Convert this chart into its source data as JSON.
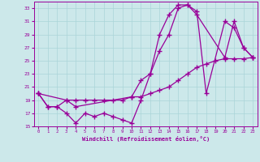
{
  "xlabel": "Windchill (Refroidissement éolien,°C)",
  "bg_color": "#cce8ea",
  "grid_color": "#aad4d8",
  "line_color": "#990099",
  "xlim": [
    -0.5,
    23.5
  ],
  "ylim": [
    15,
    34
  ],
  "xticks": [
    0,
    1,
    2,
    3,
    4,
    5,
    6,
    7,
    8,
    9,
    10,
    11,
    12,
    13,
    14,
    15,
    16,
    17,
    18,
    19,
    20,
    21,
    22,
    23
  ],
  "yticks": [
    15,
    17,
    19,
    21,
    23,
    25,
    27,
    29,
    31,
    33
  ],
  "series1_x": [
    0,
    1,
    2,
    3,
    4,
    5,
    6,
    7,
    8,
    9,
    10,
    11,
    12,
    13,
    14,
    15,
    16,
    17,
    18,
    20,
    21,
    22,
    23
  ],
  "series1_y": [
    20,
    18,
    18,
    17,
    15.5,
    17,
    16.5,
    17,
    16.5,
    16,
    15.5,
    19,
    23,
    29,
    32,
    33.5,
    33.5,
    32.5,
    20,
    31,
    30,
    27,
    25.5
  ],
  "series2_x": [
    0,
    1,
    2,
    3,
    4,
    5,
    6,
    7,
    8,
    9,
    10,
    11,
    12,
    13,
    14,
    15,
    16,
    17,
    18,
    19,
    20,
    21,
    22,
    23
  ],
  "series2_y": [
    20,
    18,
    18,
    19,
    19,
    19,
    19,
    19,
    19,
    19,
    19.5,
    19.5,
    20,
    20.5,
    21,
    22,
    23,
    24,
    24.5,
    25,
    25.3,
    25.3,
    25.3,
    25.5
  ],
  "series3_x": [
    0,
    3,
    4,
    10,
    11,
    12,
    13,
    14,
    15,
    16,
    17,
    20,
    21,
    22,
    23
  ],
  "series3_y": [
    20,
    19,
    18,
    19.5,
    22,
    23,
    26.5,
    29,
    33,
    33.5,
    32,
    25.5,
    31,
    27,
    25.5
  ]
}
